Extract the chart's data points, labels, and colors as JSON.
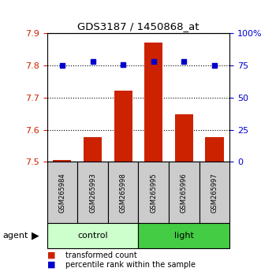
{
  "title": "GDS3187 / 1450868_at",
  "samples": [
    "GSM265984",
    "GSM265993",
    "GSM265998",
    "GSM265995",
    "GSM265996",
    "GSM265997"
  ],
  "bar_values": [
    7.506,
    7.577,
    7.723,
    7.872,
    7.648,
    7.577
  ],
  "percentile_values": [
    75,
    78,
    76,
    78,
    78,
    75
  ],
  "bar_bottom": 7.5,
  "ylim_left": [
    7.5,
    7.9
  ],
  "ylim_right": [
    0,
    100
  ],
  "yticks_left": [
    7.5,
    7.6,
    7.7,
    7.8,
    7.9
  ],
  "yticks_right": [
    0,
    25,
    50,
    75,
    100
  ],
  "bar_color": "#cc2200",
  "dot_color": "#0000cc",
  "bar_width": 0.6,
  "left_tick_color": "#cc2200",
  "right_tick_color": "#0000cc",
  "agent_label": "agent",
  "legend_bar_label": "transformed count",
  "legend_dot_label": "percentile rank within the sample",
  "control_color": "#ccffcc",
  "light_color": "#44cc44",
  "sample_box_color": "#cccccc"
}
